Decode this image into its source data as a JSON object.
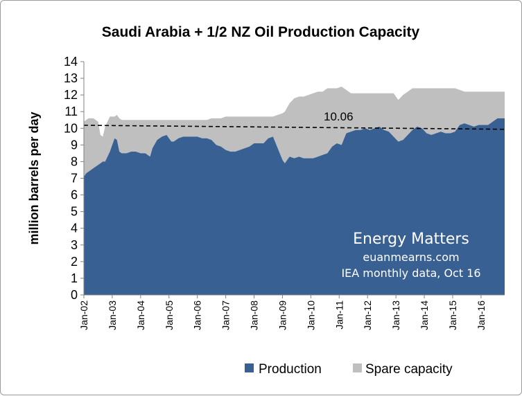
{
  "chart_data": {
    "type": "area",
    "title": "Saudi Arabia + 1/2 NZ Oil Production Capacity",
    "ylabel": "million barrels per day",
    "xlabel": "",
    "ylim": [
      0,
      14
    ],
    "yticks": [
      0,
      1,
      2,
      3,
      4,
      5,
      6,
      7,
      8,
      9,
      10,
      11,
      12,
      13,
      14
    ],
    "xticks": [
      "Jan-02",
      "Jan-03",
      "Jan-04",
      "Jan-05",
      "Jan-06",
      "Jan-07",
      "Jan-08",
      "Jan-09",
      "Jan-10",
      "Jan-11",
      "Jan-12",
      "Jan-13",
      "Jan-14",
      "Jan-15",
      "Jan-16"
    ],
    "x": [
      "2002-01",
      "2002-02",
      "2002-03",
      "2002-05",
      "2002-07",
      "2002-08",
      "2002-09",
      "2002-10",
      "2002-12",
      "2003-02",
      "2003-03",
      "2003-04",
      "2003-05",
      "2003-07",
      "2003-09",
      "2003-11",
      "2004-01",
      "2004-03",
      "2004-05",
      "2004-06",
      "2004-08",
      "2004-10",
      "2004-12",
      "2005-02",
      "2005-03",
      "2005-05",
      "2005-07",
      "2005-09",
      "2005-11",
      "2006-01",
      "2006-03",
      "2006-05",
      "2006-07",
      "2006-09",
      "2006-11",
      "2007-01",
      "2007-03",
      "2007-05",
      "2007-07",
      "2007-09",
      "2007-11",
      "2008-01",
      "2008-03",
      "2008-05",
      "2008-07",
      "2008-09",
      "2008-11",
      "2009-01",
      "2009-02",
      "2009-04",
      "2009-06",
      "2009-08",
      "2009-10",
      "2009-12",
      "2010-02",
      "2010-04",
      "2010-06",
      "2010-08",
      "2010-10",
      "2010-12",
      "2011-02",
      "2011-04",
      "2011-06",
      "2011-08",
      "2011-10",
      "2011-12",
      "2012-02",
      "2012-04",
      "2012-06",
      "2012-08",
      "2012-10",
      "2012-12",
      "2013-02",
      "2013-04",
      "2013-06",
      "2013-08",
      "2013-10",
      "2013-12",
      "2014-02",
      "2014-04",
      "2014-06",
      "2014-08",
      "2014-10",
      "2014-12",
      "2015-02",
      "2015-04",
      "2015-06",
      "2015-08",
      "2015-10",
      "2015-12",
      "2016-02",
      "2016-04",
      "2016-06",
      "2016-08",
      "2016-09"
    ],
    "series": [
      {
        "name": "Production",
        "color": "#386092",
        "values": [
          7.1,
          7.3,
          7.4,
          7.6,
          7.8,
          7.9,
          8.0,
          8.0,
          8.6,
          9.4,
          9.3,
          8.6,
          8.5,
          8.5,
          8.6,
          8.6,
          8.5,
          8.5,
          8.3,
          8.8,
          9.3,
          9.5,
          9.6,
          9.2,
          9.2,
          9.4,
          9.5,
          9.5,
          9.5,
          9.5,
          9.4,
          9.4,
          9.3,
          9.0,
          8.9,
          8.7,
          8.6,
          8.6,
          8.7,
          8.8,
          8.9,
          9.1,
          9.1,
          9.1,
          9.4,
          9.5,
          8.8,
          8.1,
          7.9,
          8.3,
          8.2,
          8.3,
          8.2,
          8.2,
          8.2,
          8.3,
          8.4,
          8.5,
          8.9,
          9.1,
          9.0,
          9.7,
          9.8,
          9.9,
          9.9,
          10.0,
          9.9,
          10.0,
          10.1,
          9.9,
          9.8,
          9.5,
          9.2,
          9.3,
          9.6,
          9.9,
          10.1,
          10.0,
          9.7,
          9.6,
          9.7,
          9.8,
          9.7,
          9.7,
          9.8,
          10.2,
          10.3,
          10.2,
          10.1,
          10.2,
          10.2,
          10.2,
          10.4,
          10.6,
          10.6
        ]
      },
      {
        "name": "Spare capacity",
        "color": "#bfbfbf",
        "values": [
          3.3,
          3.2,
          3.2,
          3.0,
          2.6,
          1.7,
          1.5,
          2.1,
          2.1,
          1.3,
          1.5,
          2.0,
          2.0,
          2.0,
          1.9,
          1.9,
          2.0,
          2.0,
          2.2,
          1.7,
          1.2,
          1.0,
          0.9,
          1.3,
          1.3,
          1.1,
          1.0,
          1.0,
          1.0,
          1.0,
          1.1,
          1.1,
          1.3,
          1.6,
          1.7,
          2.0,
          2.1,
          2.1,
          2.0,
          1.9,
          1.8,
          1.6,
          1.6,
          1.6,
          1.3,
          1.2,
          2.0,
          2.8,
          3.1,
          3.2,
          3.6,
          3.6,
          3.7,
          3.8,
          3.9,
          3.9,
          3.8,
          3.9,
          3.5,
          3.3,
          3.5,
          2.6,
          2.3,
          2.2,
          2.2,
          2.1,
          2.2,
          2.1,
          2.0,
          2.2,
          2.3,
          2.6,
          2.5,
          2.7,
          2.6,
          2.5,
          2.3,
          2.4,
          2.7,
          2.8,
          2.7,
          2.6,
          2.7,
          2.7,
          2.6,
          2.1,
          1.9,
          2.0,
          2.1,
          2.0,
          2.0,
          2.0,
          1.8,
          1.6,
          1.6
        ]
      }
    ],
    "reference_line": {
      "value": 10.06,
      "label": "10.06",
      "style": "dashed"
    },
    "grid": false,
    "legend": "bottom",
    "watermark": [
      "Energy Matters",
      "euanmearns.com",
      "IEA monthly data, Oct 16"
    ]
  }
}
